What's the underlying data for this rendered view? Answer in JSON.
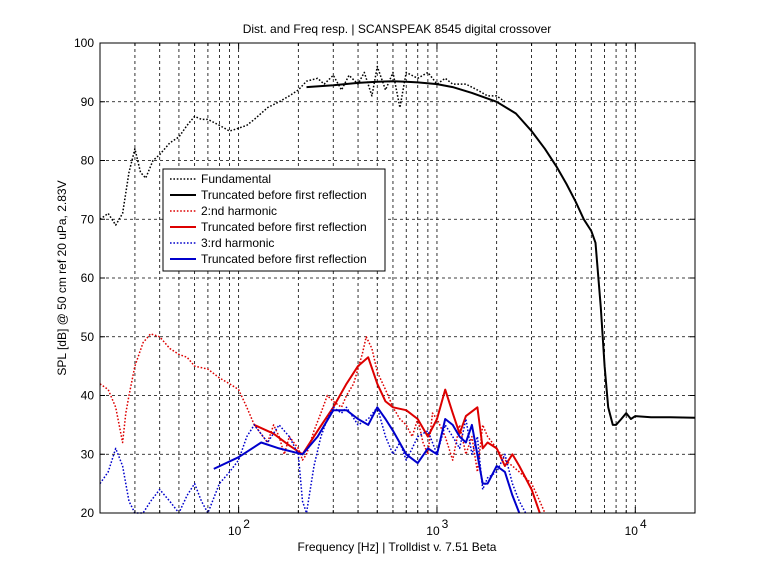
{
  "chart_data": {
    "type": "line",
    "title": "Dist. and Freq resp.  | SCANSPEAK 8545 digital crossover",
    "xlabel": "Frequency [Hz] | Trolldist v. 7.51 Beta",
    "ylabel": "SPL [dB] @ 50 cm ref 20 uPa, 2.83V",
    "xscale": "log",
    "xlim": [
      20,
      20000
    ],
    "ylim": [
      20,
      100
    ],
    "yticks": [
      20,
      30,
      40,
      50,
      60,
      70,
      80,
      90,
      100
    ],
    "xtick_labels": [
      {
        "value": 100,
        "base": "10",
        "exp": "2"
      },
      {
        "value": 1000,
        "base": "10",
        "exp": "3"
      },
      {
        "value": 10000,
        "base": "10",
        "exp": "4"
      }
    ],
    "grid": true,
    "legend_position": "upper-left",
    "series": [
      {
        "name": "Fundamental",
        "color": "#000000",
        "style": "dotted",
        "points": [
          [
            20,
            70
          ],
          [
            22,
            71
          ],
          [
            24,
            69
          ],
          [
            26,
            71
          ],
          [
            28,
            78
          ],
          [
            30,
            82
          ],
          [
            32,
            78
          ],
          [
            34,
            77
          ],
          [
            37,
            80
          ],
          [
            40,
            81
          ],
          [
            45,
            83
          ],
          [
            50,
            84
          ],
          [
            55,
            86
          ],
          [
            60,
            87.5
          ],
          [
            65,
            87
          ],
          [
            70,
            87
          ],
          [
            80,
            86
          ],
          [
            90,
            85
          ],
          [
            100,
            85.5
          ],
          [
            110,
            86
          ],
          [
            120,
            87
          ],
          [
            140,
            89
          ],
          [
            160,
            90
          ],
          [
            180,
            91
          ],
          [
            200,
            92
          ],
          [
            220,
            93.5
          ],
          [
            250,
            94
          ],
          [
            270,
            93
          ],
          [
            300,
            94.5
          ],
          [
            330,
            92
          ],
          [
            360,
            94.5
          ],
          [
            400,
            93
          ],
          [
            430,
            95
          ],
          [
            470,
            91
          ],
          [
            500,
            96
          ],
          [
            550,
            92
          ],
          [
            600,
            95
          ],
          [
            650,
            89
          ],
          [
            700,
            95
          ],
          [
            800,
            94
          ],
          [
            900,
            95
          ],
          [
            1000,
            93
          ],
          [
            1100,
            94
          ],
          [
            1200,
            93
          ],
          [
            1400,
            93
          ],
          [
            1600,
            92
          ],
          [
            1800,
            91
          ],
          [
            2000,
            91
          ],
          [
            2200,
            90
          ]
        ]
      },
      {
        "name": "Truncated before first reflection",
        "color": "#000000",
        "style": "solid",
        "points": [
          [
            220,
            92.5
          ],
          [
            300,
            92.8
          ],
          [
            400,
            93.2
          ],
          [
            500,
            93.4
          ],
          [
            600,
            93.5
          ],
          [
            700,
            93.4
          ],
          [
            800,
            93.3
          ],
          [
            1000,
            93.0
          ],
          [
            1200,
            92.5
          ],
          [
            1500,
            91.5
          ],
          [
            2000,
            90
          ],
          [
            2500,
            88
          ],
          [
            3000,
            85
          ],
          [
            3500,
            82
          ],
          [
            4000,
            79
          ],
          [
            4500,
            76
          ],
          [
            5000,
            73
          ],
          [
            5500,
            70
          ],
          [
            6000,
            68
          ],
          [
            6300,
            66
          ],
          [
            6700,
            55
          ],
          [
            7000,
            45
          ],
          [
            7300,
            38
          ],
          [
            7700,
            35
          ],
          [
            8000,
            35
          ],
          [
            8500,
            36
          ],
          [
            9000,
            37
          ],
          [
            9500,
            36
          ],
          [
            10000,
            36.5
          ],
          [
            12000,
            36.3
          ],
          [
            15000,
            36.3
          ],
          [
            20000,
            36.2
          ]
        ]
      },
      {
        "name": "2:nd harmonic",
        "color": "#dd0000",
        "style": "dotted",
        "points": [
          [
            20,
            42
          ],
          [
            22,
            41
          ],
          [
            24,
            38
          ],
          [
            26,
            32
          ],
          [
            27,
            37
          ],
          [
            28,
            40
          ],
          [
            30,
            45
          ],
          [
            33,
            49
          ],
          [
            36,
            50.5
          ],
          [
            40,
            50
          ],
          [
            45,
            48
          ],
          [
            50,
            47
          ],
          [
            55,
            46.5
          ],
          [
            60,
            45
          ],
          [
            70,
            44.5
          ],
          [
            80,
            43
          ],
          [
            90,
            42
          ],
          [
            100,
            41
          ],
          [
            110,
            38
          ],
          [
            120,
            35
          ],
          [
            140,
            32
          ],
          [
            150,
            35
          ],
          [
            160,
            33
          ],
          [
            170,
            30
          ],
          [
            180,
            33
          ],
          [
            200,
            31
          ],
          [
            210,
            29
          ],
          [
            220,
            30
          ],
          [
            240,
            34
          ],
          [
            260,
            37
          ],
          [
            280,
            40
          ],
          [
            300,
            39
          ],
          [
            330,
            38
          ],
          [
            350,
            40
          ],
          [
            380,
            42
          ],
          [
            420,
            47
          ],
          [
            440,
            50
          ],
          [
            470,
            48
          ],
          [
            500,
            44
          ],
          [
            550,
            41
          ],
          [
            600,
            38
          ],
          [
            650,
            36
          ],
          [
            700,
            35
          ],
          [
            750,
            33
          ],
          [
            800,
            36
          ],
          [
            850,
            32
          ],
          [
            900,
            30
          ],
          [
            950,
            37
          ],
          [
            1000,
            36
          ],
          [
            1100,
            33
          ],
          [
            1200,
            29
          ],
          [
            1300,
            35
          ],
          [
            1400,
            30
          ],
          [
            1500,
            33
          ],
          [
            1600,
            27
          ],
          [
            1700,
            35
          ],
          [
            1800,
            33
          ],
          [
            2000,
            31
          ],
          [
            2200,
            29
          ],
          [
            2400,
            28
          ],
          [
            2600,
            27
          ],
          [
            2800,
            26
          ],
          [
            3000,
            25
          ],
          [
            3200,
            23
          ],
          [
            3500,
            20
          ]
        ]
      },
      {
        "name": "Truncated before first reflection",
        "color": "#dd0000",
        "style": "solid",
        "points": [
          [
            120,
            35
          ],
          [
            150,
            33.5
          ],
          [
            180,
            31.5
          ],
          [
            210,
            30
          ],
          [
            250,
            34
          ],
          [
            300,
            38
          ],
          [
            350,
            42
          ],
          [
            400,
            45
          ],
          [
            450,
            46.5
          ],
          [
            500,
            42
          ],
          [
            550,
            39
          ],
          [
            600,
            38
          ],
          [
            700,
            37.5
          ],
          [
            800,
            36
          ],
          [
            900,
            33
          ],
          [
            1000,
            36
          ],
          [
            1100,
            41
          ],
          [
            1200,
            37
          ],
          [
            1300,
            33.5
          ],
          [
            1400,
            36.5
          ],
          [
            1600,
            38
          ],
          [
            1700,
            31
          ],
          [
            1800,
            32
          ],
          [
            2000,
            31
          ],
          [
            2200,
            28
          ],
          [
            2400,
            30
          ],
          [
            2600,
            28
          ],
          [
            3000,
            24
          ],
          [
            3300,
            20
          ]
        ]
      },
      {
        "name": "3:rd harmonic",
        "color": "#0000cc",
        "style": "dotted",
        "points": [
          [
            20,
            25
          ],
          [
            22,
            27
          ],
          [
            24,
            31
          ],
          [
            26,
            28
          ],
          [
            28,
            22
          ],
          [
            30,
            17
          ],
          [
            33,
            20
          ],
          [
            36,
            22
          ],
          [
            40,
            24
          ],
          [
            45,
            22
          ],
          [
            50,
            20
          ],
          [
            55,
            23
          ],
          [
            60,
            25
          ],
          [
            65,
            22
          ],
          [
            70,
            18
          ],
          [
            80,
            25
          ],
          [
            90,
            27
          ],
          [
            100,
            29
          ],
          [
            110,
            33
          ],
          [
            120,
            35
          ],
          [
            140,
            32
          ],
          [
            160,
            35
          ],
          [
            180,
            33
          ],
          [
            200,
            30
          ],
          [
            210,
            22
          ],
          [
            220,
            20
          ],
          [
            240,
            28
          ],
          [
            260,
            33
          ],
          [
            280,
            36
          ],
          [
            300,
            38
          ],
          [
            330,
            37
          ],
          [
            350,
            38
          ],
          [
            400,
            35
          ],
          [
            450,
            36
          ],
          [
            500,
            38
          ],
          [
            550,
            33
          ],
          [
            600,
            30
          ],
          [
            650,
            32
          ],
          [
            700,
            29
          ],
          [
            750,
            31
          ],
          [
            800,
            33
          ],
          [
            900,
            34
          ],
          [
            1000,
            30
          ],
          [
            1100,
            35
          ],
          [
            1200,
            33
          ],
          [
            1300,
            31
          ],
          [
            1400,
            36
          ],
          [
            1500,
            30
          ],
          [
            1600,
            33
          ],
          [
            1700,
            24
          ],
          [
            1800,
            26
          ],
          [
            2000,
            27
          ],
          [
            2200,
            30
          ],
          [
            2400,
            25
          ],
          [
            2600,
            22
          ],
          [
            2800,
            20
          ]
        ]
      },
      {
        "name": "Truncated before first reflection",
        "color": "#0000cc",
        "style": "solid",
        "points": [
          [
            75,
            27.5
          ],
          [
            100,
            29.5
          ],
          [
            130,
            32
          ],
          [
            160,
            31
          ],
          [
            210,
            30
          ],
          [
            250,
            33
          ],
          [
            300,
            37.5
          ],
          [
            350,
            37.5
          ],
          [
            400,
            36
          ],
          [
            450,
            35
          ],
          [
            500,
            38
          ],
          [
            550,
            36
          ],
          [
            600,
            34
          ],
          [
            700,
            30
          ],
          [
            800,
            28.5
          ],
          [
            900,
            31
          ],
          [
            1000,
            30
          ],
          [
            1100,
            36
          ],
          [
            1200,
            35
          ],
          [
            1300,
            33
          ],
          [
            1400,
            32
          ],
          [
            1500,
            35
          ],
          [
            1700,
            25
          ],
          [
            1800,
            25
          ],
          [
            2000,
            28
          ],
          [
            2200,
            27
          ],
          [
            2400,
            23
          ],
          [
            2600,
            20
          ]
        ]
      }
    ]
  }
}
